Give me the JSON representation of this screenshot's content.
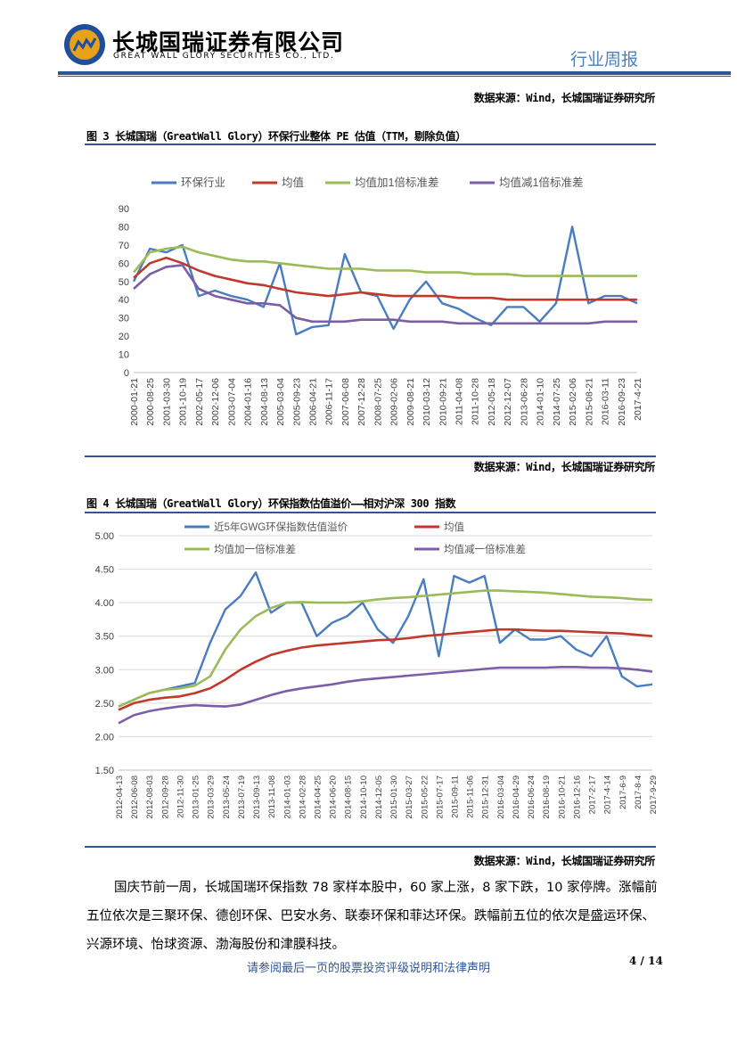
{
  "header": {
    "company_cn": "长城国瑞证券有限公司",
    "company_en": "GREAT WALL GLORY SECURITIES CO., LTD.",
    "report_type": "行业周报",
    "logo_icon": "great-wall-logo-icon"
  },
  "sources": {
    "top": "数据来源：Wind，长城国瑞证券研究所",
    "fig3": "数据来源：Wind，长城国瑞证券研究所",
    "fig4": "数据来源：Wind，长城国瑞证券研究所"
  },
  "fig3": {
    "title": "图 3 长城国瑞（GreatWall Glory）环保行业整体 PE 估值（TTM，剔除负值）"
  },
  "fig4": {
    "title": "图 4 长城国瑞（GreatWall Glory）环保指数估值溢价——相对沪深 300 指数"
  },
  "chart_data": [
    {
      "type": "line",
      "title": "图 3 长城国瑞（GreatWall Glory）环保行业整体 PE 估值（TTM，剔除负值）",
      "ylim": [
        0,
        90
      ],
      "yticks": [
        "0",
        "10",
        "20",
        "30",
        "40",
        "50",
        "60",
        "70",
        "80",
        "90"
      ],
      "categories": [
        "2000-01-21",
        "2000-08-25",
        "2001-03-30",
        "2001-10-19",
        "2002-05-17",
        "2002-12-06",
        "2003-07-04",
        "2004-01-16",
        "2004-08-13",
        "2005-03-04",
        "2005-09-23",
        "2006-04-21",
        "2006-11-17",
        "2007-06-08",
        "2007-12-28",
        "2008-07-25",
        "2009-02-06",
        "2009-08-21",
        "2010-03-12",
        "2010-09-21",
        "2011-04-08",
        "2011-10-28",
        "2012-05-18",
        "2012-12-07",
        "2013-06-28",
        "2014-01-10",
        "2014-07-25",
        "2015-02-06",
        "2015-08-21",
        "2016-03-11",
        "2016-09-23",
        "2017-4-21"
      ],
      "series": [
        {
          "name": "环保行业",
          "color": "#4a7cc0",
          "values": [
            50,
            68,
            66,
            70,
            42,
            45,
            42,
            40,
            36,
            60,
            21,
            25,
            26,
            65,
            44,
            42,
            24,
            40,
            50,
            38,
            35,
            30,
            26,
            36,
            36,
            28,
            38,
            80,
            38,
            42,
            42,
            38
          ]
        },
        {
          "name": "均值",
          "color": "#c0392b",
          "values": [
            52,
            60,
            63,
            60,
            56,
            53,
            51,
            49,
            48,
            46,
            44,
            43,
            42,
            43,
            44,
            43,
            42,
            42,
            42,
            42,
            41,
            41,
            41,
            40,
            40,
            40,
            40,
            40,
            40,
            40,
            40,
            40
          ]
        },
        {
          "name": "均值加1倍标准差",
          "color": "#9bbb59",
          "values": [
            55,
            66,
            68,
            69,
            66,
            64,
            62,
            61,
            61,
            60,
            59,
            58,
            57,
            57,
            57,
            56,
            56,
            56,
            55,
            55,
            55,
            54,
            54,
            54,
            53,
            53,
            53,
            53,
            53,
            53,
            53,
            53
          ]
        },
        {
          "name": "均值减1倍标准差",
          "color": "#7b5ea7",
          "values": [
            46,
            54,
            58,
            59,
            46,
            42,
            40,
            38,
            38,
            37,
            30,
            28,
            28,
            28,
            29,
            29,
            29,
            28,
            28,
            28,
            27,
            27,
            27,
            27,
            27,
            27,
            27,
            27,
            27,
            28,
            28,
            28
          ]
        }
      ]
    },
    {
      "type": "line",
      "title": "图 4 长城国瑞（GreatWall Glory）环保指数估值溢价——相对沪深 300 指数",
      "ylim": [
        1.5,
        5.0
      ],
      "yticks": [
        "1.50",
        "2.00",
        "2.50",
        "3.00",
        "3.50",
        "4.00",
        "4.50",
        "5.00"
      ],
      "categories": [
        "2012-04-13",
        "2012-06-08",
        "2012-08-03",
        "2012-09-28",
        "2012-11-30",
        "2013-01-25",
        "2013-03-29",
        "2013-05-24",
        "2013-07-19",
        "2013-09-13",
        "2013-11-08",
        "2014-01-03",
        "2014-02-28",
        "2014-04-25",
        "2014-06-20",
        "2014-08-15",
        "2014-10-10",
        "2014-12-05",
        "2015-01-30",
        "2015-03-27",
        "2015-05-22",
        "2015-07-17",
        "2015-09-11",
        "2015-11-06",
        "2015-12-31",
        "2016-03-04",
        "2016-04-29",
        "2016-06-24",
        "2016-08-19",
        "2016-10-21",
        "2016-12-16",
        "2017-2-17",
        "2017-4-14",
        "2017-6-9",
        "2017-8-4",
        "2017-9-29"
      ],
      "series": [
        {
          "name": "近5年GWG环保指数估值溢价",
          "color": "#4a7cc0",
          "values": [
            2.45,
            2.55,
            2.65,
            2.7,
            2.75,
            2.8,
            3.4,
            3.9,
            4.1,
            4.45,
            3.85,
            4.0,
            4.0,
            3.5,
            3.7,
            3.8,
            4.0,
            3.6,
            3.4,
            3.8,
            4.35,
            3.2,
            4.4,
            4.3,
            4.4,
            3.4,
            3.6,
            3.45,
            3.45,
            3.5,
            3.3,
            3.2,
            3.5,
            2.9,
            2.75,
            2.78
          ]
        },
        {
          "name": "均值",
          "color": "#c0392b",
          "values": [
            2.4,
            2.5,
            2.55,
            2.58,
            2.6,
            2.65,
            2.72,
            2.85,
            3.0,
            3.12,
            3.22,
            3.28,
            3.33,
            3.36,
            3.38,
            3.4,
            3.42,
            3.44,
            3.45,
            3.47,
            3.5,
            3.52,
            3.54,
            3.56,
            3.58,
            3.6,
            3.6,
            3.59,
            3.58,
            3.58,
            3.57,
            3.56,
            3.55,
            3.54,
            3.52,
            3.5
          ]
        },
        {
          "name": "均值加一倍标准差",
          "color": "#9bbb59",
          "values": [
            2.45,
            2.55,
            2.65,
            2.7,
            2.72,
            2.76,
            2.9,
            3.3,
            3.6,
            3.8,
            3.92,
            4.0,
            4.01,
            4.0,
            4.0,
            4.0,
            4.02,
            4.05,
            4.07,
            4.08,
            4.1,
            4.12,
            4.14,
            4.16,
            4.18,
            4.18,
            4.17,
            4.16,
            4.15,
            4.13,
            4.11,
            4.09,
            4.08,
            4.07,
            4.05,
            4.04
          ]
        },
        {
          "name": "均值减一倍标准差",
          "color": "#7b5ea7",
          "values": [
            2.2,
            2.32,
            2.38,
            2.42,
            2.45,
            2.47,
            2.46,
            2.45,
            2.48,
            2.55,
            2.62,
            2.68,
            2.72,
            2.75,
            2.78,
            2.82,
            2.85,
            2.87,
            2.89,
            2.91,
            2.93,
            2.95,
            2.97,
            2.99,
            3.01,
            3.03,
            3.03,
            3.03,
            3.03,
            3.04,
            3.04,
            3.03,
            3.03,
            3.02,
            3.0,
            2.97
          ]
        }
      ]
    }
  ],
  "body": {
    "paragraph": "国庆节前一周，长城国瑞环保指数 78 家样本股中，60 家上涨，8 家下跌，10 家停牌。涨幅前五位依次是三聚环保、德创环保、巴安水务、联泰环保和菲达环保。跌幅前五位的依次是盛运环保、兴源环境、怡球资源、渤海股份和津膜科技。"
  },
  "footer": {
    "note": "请参阅最后一页的股票投资评级说明和法律声明",
    "page": "4 / 14"
  }
}
